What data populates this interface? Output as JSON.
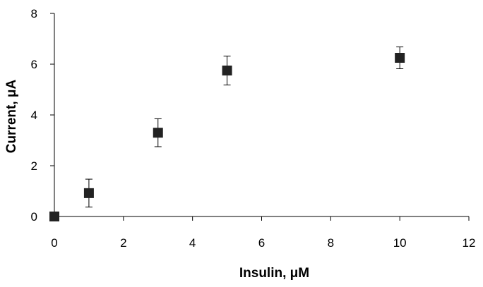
{
  "chart_data": {
    "type": "scatter",
    "title": "",
    "xlabel": "Insulin, μM",
    "ylabel": "Current, μA",
    "xlim": [
      0,
      12
    ],
    "ylim": [
      0,
      8
    ],
    "xticks": [
      0,
      2,
      4,
      6,
      8,
      10,
      12
    ],
    "yticks": [
      0,
      2,
      4,
      6,
      8
    ],
    "xtick_labels": [
      "0",
      "2",
      "4",
      "6",
      "8",
      "10",
      "12"
    ],
    "ytick_labels": [
      "0",
      "2",
      "4",
      "6",
      "8"
    ],
    "grid": false,
    "legend": "none",
    "marker": "square",
    "color": "#222222",
    "points": [
      {
        "x": 0,
        "y": 0.0,
        "err": 0
      },
      {
        "x": 1,
        "y": 0.92,
        "err": 0.55
      },
      {
        "x": 3,
        "y": 3.3,
        "err": 0.55
      },
      {
        "x": 5,
        "y": 5.75,
        "err": 0.57
      },
      {
        "x": 10,
        "y": 6.25,
        "err": 0.43
      }
    ]
  }
}
